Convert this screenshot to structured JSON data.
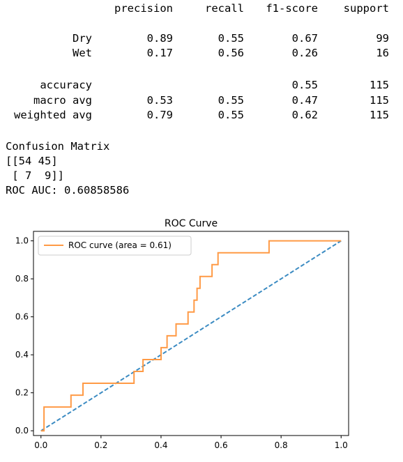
{
  "report": {
    "headers": [
      "precision",
      "recall",
      "f1-score",
      "support"
    ],
    "rows": [
      {
        "label": "Dry",
        "precision": "0.89",
        "recall": "0.55",
        "f1": "0.67",
        "support": "99"
      },
      {
        "label": "Wet",
        "precision": "0.17",
        "recall": "0.56",
        "f1": "0.26",
        "support": "16"
      }
    ],
    "summary": [
      {
        "label": "accuracy",
        "precision": "",
        "recall": "",
        "f1": "0.55",
        "support": "115"
      },
      {
        "label": "macro avg",
        "precision": "0.53",
        "recall": "0.55",
        "f1": "0.47",
        "support": "115"
      },
      {
        "label": "weighted avg",
        "precision": "0.79",
        "recall": "0.55",
        "f1": "0.62",
        "support": "115"
      }
    ]
  },
  "confusion": {
    "heading": "Confusion Matrix",
    "line1": "[[54 45]",
    "line2": " [ 7  9]]",
    "roc_auc": "ROC AUC: 0.60858586"
  },
  "chart_data": {
    "type": "line",
    "title": "ROC Curve",
    "xlabel": "",
    "ylabel": "",
    "xlim": [
      -0.025,
      1.025
    ],
    "ylim": [
      -0.025,
      1.05
    ],
    "xticks": [
      "0.0",
      "0.2",
      "0.4",
      "0.6",
      "0.8",
      "1.0"
    ],
    "yticks": [
      "0.0",
      "0.2",
      "0.4",
      "0.6",
      "0.8",
      "1.0"
    ],
    "legend": {
      "position": "top-left",
      "entries": [
        "ROC curve (area = 0.61)"
      ]
    },
    "series": [
      {
        "name": "ROC curve (area = 0.61)",
        "color": "#ff9a45",
        "style": "solid",
        "x": [
          0,
          0.01,
          0.01,
          0.1,
          0.1,
          0.14,
          0.14,
          0.31,
          0.31,
          0.34,
          0.34,
          0.4,
          0.4,
          0.42,
          0.42,
          0.45,
          0.45,
          0.49,
          0.49,
          0.51,
          0.51,
          0.52,
          0.52,
          0.53,
          0.53,
          0.57,
          0.57,
          0.59,
          0.59,
          0.6,
          0.6,
          0.76,
          0.76,
          1.0
        ],
        "y": [
          0,
          0,
          0.125,
          0.125,
          0.1875,
          0.1875,
          0.25,
          0.25,
          0.3125,
          0.3125,
          0.375,
          0.375,
          0.4375,
          0.4375,
          0.5,
          0.5,
          0.5625,
          0.5625,
          0.625,
          0.625,
          0.6875,
          0.6875,
          0.75,
          0.75,
          0.8125,
          0.8125,
          0.875,
          0.875,
          0.9375,
          0.9375,
          0.9375,
          0.9375,
          1.0,
          1.0
        ]
      },
      {
        "name": "",
        "color": "#3b8bc2",
        "style": "dashed",
        "x": [
          0,
          1
        ],
        "y": [
          0,
          1
        ]
      }
    ]
  }
}
